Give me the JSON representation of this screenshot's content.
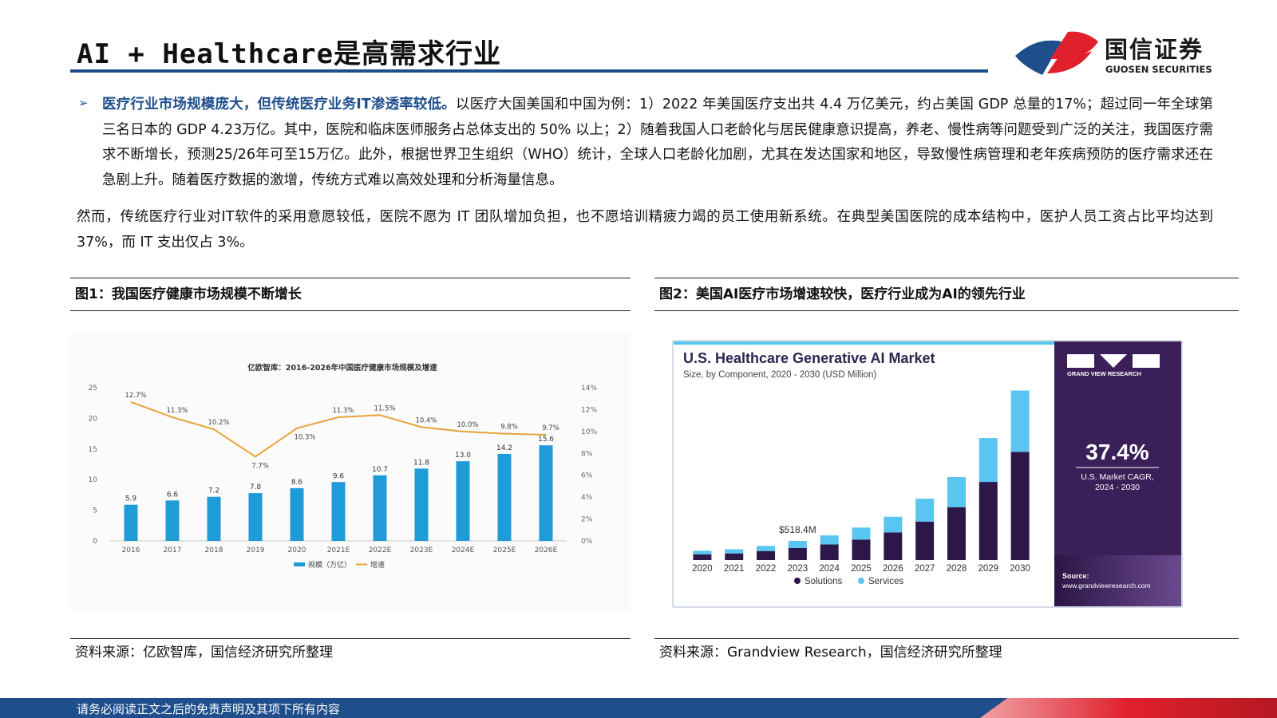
{
  "page": {
    "title": "AI + Healthcare是高需求行业",
    "logo_cn": "国信证券",
    "logo_en": "GUOSEN SECURITIES",
    "footer": "请务必阅读正文之后的免责声明及其项下所有内容"
  },
  "intro": {
    "bullet": "➢",
    "highlight": "医疗行业市场规模庞大，但传统医疗业务IT渗透率较低。",
    "body": "以医疗大国美国和中国为例：1）2022 年美国医疗支出共 4.4 万亿美元，约占美国 GDP 总量的17%；超过同一年全球第三名日本的 GDP 4.23万亿。其中，医院和临床医师服务占总体支出的 50% 以上；2）随着我国人口老龄化与居民健康意识提高，养老、慢性病等问题受到广泛的关注，我国医疗需求不断增长，预测25/26年可至15万亿。此外，根据世界卫生组织（WHO）统计，全球人口老龄化加剧，尤其在发达国家和地区，导致慢性病管理和老年疾病预防的医疗需求还在急剧上升。随着医疗数据的激增，传统方式难以高效处理和分析海量信息。",
    "para2": "然而，传统医疗行业对IT软件的采用意愿较低，医院不愿为 IT 团队增加负担，也不愿培训精疲力竭的员工使用新系统。在典型美国医院的成本结构中，医护人员工资占比平均达到 37%，而 IT 支出仅占 3%。"
  },
  "figures": {
    "fig1_title": "图1：我国医疗健康市场规模不断增长",
    "fig1_source": "资料来源：亿欧智库，国信经济研究所整理",
    "fig2_title": "图2：美国AI医疗市场增速较快，医疗行业成为AI的领先行业",
    "fig2_source": "资料来源：Grandview Research，国信经济研究所整理"
  },
  "chart_data": [
    {
      "type": "bar",
      "title": "亿欧智库：2016-2026年中国医疗健康市场规模及增速",
      "categories": [
        "2016",
        "2017",
        "2018",
        "2019",
        "2020",
        "2021E",
        "2022E",
        "2023E",
        "2024E",
        "2025E",
        "2026E"
      ],
      "series": [
        {
          "name": "规模（万亿）",
          "type": "bar",
          "axis": "left",
          "color": "#1f9bd7",
          "values": [
            5.9,
            6.6,
            7.2,
            7.8,
            8.6,
            9.6,
            10.7,
            11.8,
            13.0,
            14.2,
            15.6
          ]
        },
        {
          "name": "增速",
          "type": "line",
          "axis": "right",
          "color": "#e8a33a",
          "values": [
            12.7,
            11.3,
            10.2,
            7.7,
            10.3,
            11.3,
            11.5,
            10.4,
            10.0,
            9.8,
            9.7
          ],
          "labels": [
            "12.7%",
            "11.3%",
            "10.2%",
            "7.7%",
            "10.3%",
            "11.3%",
            "11.5%",
            "10.4%",
            "10.0%",
            "9.8%",
            "9.7%"
          ]
        }
      ],
      "ylim": [
        0,
        25
      ],
      "yticks": [
        "0",
        "5",
        "10",
        "15",
        "20",
        "25"
      ],
      "y2lim": [
        0,
        14
      ],
      "y2ticks": [
        "0%",
        "2%",
        "4%",
        "6%",
        "8%",
        "10%",
        "12%",
        "14%"
      ],
      "value_labels": [
        "5.9",
        "6.6",
        "7.2",
        "7.8",
        "8.6",
        "9.6",
        "10.7",
        "11.8",
        "13.0",
        "14.2",
        "15.6"
      ],
      "grid": false,
      "legend": "bottom"
    },
    {
      "type": "bar",
      "stacked": true,
      "title": "U.S. Healthcare Generative AI Market",
      "subtitle": "Size, by Component, 2020 - 2030 (USD Million)",
      "categories": [
        "2020",
        "2021",
        "2022",
        "2023",
        "2024",
        "2025",
        "2026",
        "2027",
        "2028",
        "2029",
        "2030"
      ],
      "series": [
        {
          "name": "Solutions",
          "color": "#2b1848",
          "values": [
            95,
            110,
            150,
            200,
            260,
            340,
            460,
            640,
            880,
            1300,
            1800
          ]
        },
        {
          "name": "Services",
          "color": "#5bc5f2",
          "values": [
            60,
            70,
            85,
            118,
            150,
            200,
            260,
            380,
            500,
            730,
            1020
          ]
        }
      ],
      "ylim": [
        0,
        3000
      ],
      "annotation": "$518.4M",
      "legend": "bottom",
      "side_panel": {
        "brand": "GRAND VIEW RESEARCH",
        "cagr": "37.4%",
        "cagr_label1": "U.S. Market CAGR,",
        "cagr_label2": "2024 - 2030",
        "source_label": "Source:",
        "source_url": "www.grandviewresearch.com"
      },
      "colors": {
        "panel": "#3a1f58",
        "accent": "#5bc5f2",
        "frame": "#d4dbe6"
      }
    }
  ]
}
